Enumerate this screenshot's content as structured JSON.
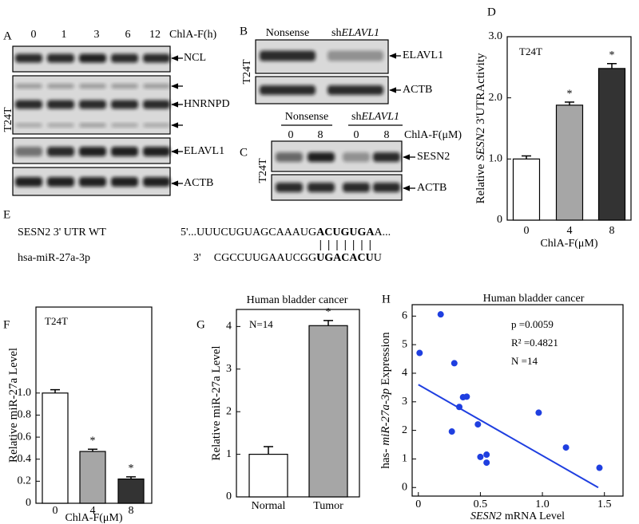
{
  "figure": {
    "panel_labels": [
      "A",
      "B",
      "C",
      "D",
      "E",
      "F",
      "G",
      "H"
    ],
    "blots": {
      "A": {
        "cell_line": "T24T",
        "treatment": "ChlA-F(h)",
        "times": [
          0,
          1,
          3,
          6,
          12
        ],
        "proteins": [
          "NCL",
          "HNRNPD",
          "ELAVL1",
          "ACTB"
        ]
      },
      "B": {
        "cell_line": "T24T",
        "control": "Nonsense",
        "knockdown": [
          "sh",
          "ELAVL1"
        ],
        "proteins": [
          "ELAVL1",
          "ACTB"
        ]
      },
      "C": {
        "cell_line": "T24T",
        "control": "Nonsense",
        "knockdown": [
          "sh",
          "ELAVL1"
        ],
        "doses": [
          0,
          8,
          0,
          8
        ],
        "treatment": "ChlA-F(μM)",
        "proteins": [
          "SESN2",
          "ACTB"
        ]
      }
    },
    "sequence": {
      "utr": {
        "name": "SESN2 3' UTR WT",
        "parts": [
          "5'...UUUCUGUAGCAAAUG",
          "ACUGUGA",
          "A..."
        ]
      },
      "mirna": {
        "name": "hsa-miR-27a-3p",
        "prime": "3'",
        "parts": [
          "CGCCUUGAAUCGG",
          "UGACACU",
          "U"
        ]
      }
    }
  },
  "chart_data": [
    {
      "type": "bar",
      "ylabel": [
        "Relative",
        "SESN2",
        "3'UTRActivity"
      ],
      "annotation": "T24T",
      "xlabel": "ChlA-F(μM)",
      "categories": [
        "0",
        "4",
        "8"
      ],
      "values": [
        1.0,
        1.88,
        2.48
      ],
      "errors": [
        0.05,
        0.05,
        0.08
      ],
      "significance": [
        null,
        "*",
        "*"
      ],
      "colors": [
        "#ffffff",
        "#a6a6a6",
        "#333333"
      ],
      "ylim": [
        0,
        3
      ],
      "yticks": [
        0,
        {
          "value": 1,
          "label": "1.0"
        },
        {
          "value": 2,
          "label": "2.0"
        },
        {
          "value": 3,
          "label": "3.0"
        }
      ]
    },
    {
      "type": "bar",
      "ylabel": [
        "Relative miR-27a Level"
      ],
      "annotation": "T24T",
      "xlabel": "ChlA-F(μM)",
      "categories": [
        "0",
        "4",
        "8"
      ],
      "values": [
        1.0,
        0.47,
        0.22
      ],
      "errors": [
        0.03,
        0.02,
        0.02
      ],
      "significance": [
        null,
        "*",
        "*"
      ],
      "colors": [
        "#ffffff",
        "#a6a6a6",
        "#333333"
      ],
      "ylim": [
        0,
        1.78
      ],
      "yticks": [
        0,
        0.2,
        0.4,
        0.6,
        0.8,
        {
          "value": 1,
          "label": "1.0"
        }
      ]
    },
    {
      "type": "bar",
      "title": "Human bladder cancer",
      "ylabel": [
        "Relative miR-27a Level"
      ],
      "annotation": "N=14",
      "categories": [
        "Normal",
        "Tumor"
      ],
      "values": [
        1.0,
        4.02
      ],
      "errors": [
        0.18,
        0.12
      ],
      "significance": [
        null,
        "*"
      ],
      "colors": [
        "#ffffff",
        "#a6a6a6"
      ],
      "ylim": [
        0,
        4.4
      ],
      "yticks": [
        0,
        1,
        2,
        3,
        4
      ]
    },
    {
      "type": "scatter",
      "title": "Human bladder cancer",
      "ylabel": [
        "has-",
        "miR-27a-3p",
        "Expression"
      ],
      "xlabel": [
        "SESN2",
        "mRNA  Level"
      ],
      "stats": [
        "p =0.0059",
        "R² =0.4821",
        "N =14"
      ],
      "color": "#1f3fe0",
      "x": [
        0.18,
        0.01,
        0.29,
        0.36,
        0.39,
        0.33,
        0.27,
        0.48,
        0.97,
        0.5,
        0.55,
        0.55,
        1.19,
        1.46
      ],
      "y": [
        6.06,
        4.71,
        4.35,
        3.16,
        3.18,
        2.82,
        1.96,
        2.21,
        2.62,
        1.07,
        1.15,
        0.87,
        1.4,
        0.69
      ],
      "trendline": {
        "x": [
          0,
          1.45
        ],
        "y": [
          3.6,
          0
        ]
      },
      "xlim": [
        -0.05,
        1.65
      ],
      "ylim": [
        -0.3,
        6.4
      ],
      "xticks": [
        0,
        0.5,
        {
          "value": 1,
          "label": "1.0"
        },
        1.5
      ],
      "yticks": [
        0,
        1,
        2,
        3,
        4,
        5,
        6
      ]
    }
  ]
}
